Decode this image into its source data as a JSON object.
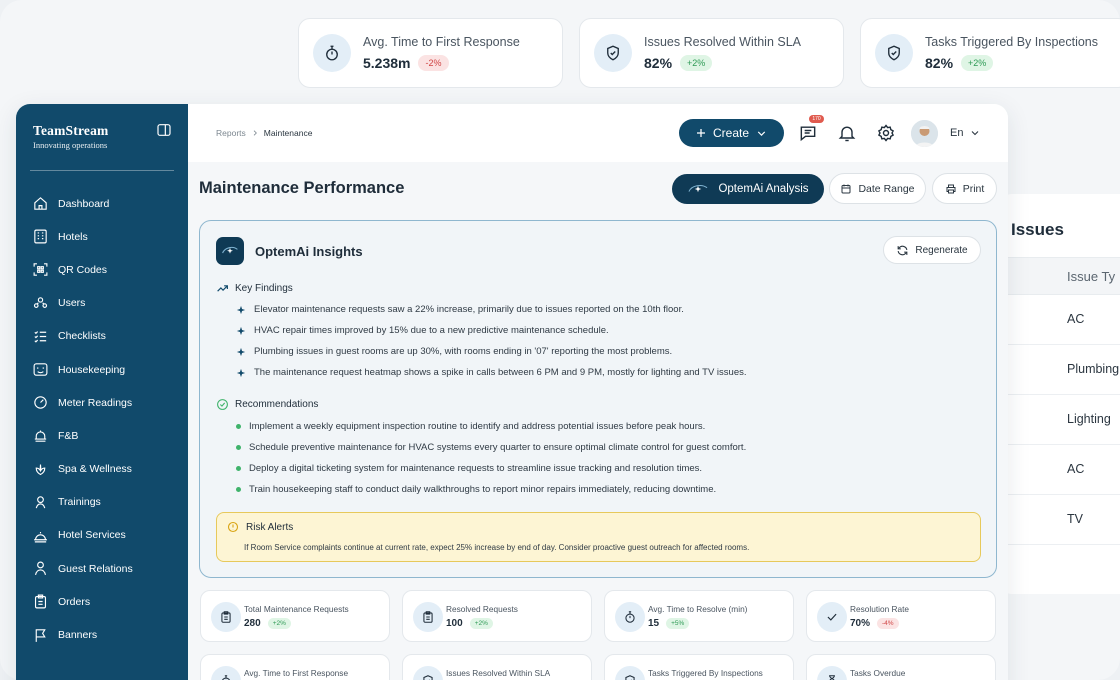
{
  "bg_stats": [
    {
      "label": "Avg. Time to First Response",
      "value": "5.238m",
      "delta": "-2%",
      "trend": "down",
      "icon": "stopwatch-icon"
    },
    {
      "label": "Issues Resolved Within SLA",
      "value": "82%",
      "delta": "+2%",
      "trend": "up",
      "icon": "shield-check-icon"
    },
    {
      "label": "Tasks Triggered By Inspections",
      "value": "82%",
      "delta": "+2%",
      "trend": "up",
      "icon": "shield-check-icon"
    }
  ],
  "bg_issues": {
    "title": "Issues",
    "column": "Issue Ty",
    "rows": [
      "AC",
      "Plumbing",
      "Lighting",
      "AC",
      "TV"
    ]
  },
  "brand": {
    "name": "TeamStream",
    "tagline": "Innovating operations"
  },
  "sidebar": {
    "items": [
      {
        "label": "Dashboard",
        "icon": "home-icon"
      },
      {
        "label": "Hotels",
        "icon": "building-icon"
      },
      {
        "label": "QR Codes",
        "icon": "qr-code-icon"
      },
      {
        "label": "Users",
        "icon": "users-icon"
      },
      {
        "label": "Checklists",
        "icon": "checklist-icon"
      },
      {
        "label": "Housekeeping",
        "icon": "housekeeping-icon"
      },
      {
        "label": "Meter Readings",
        "icon": "gauge-icon"
      },
      {
        "label": "F&B",
        "icon": "food-icon"
      },
      {
        "label": "Spa & Wellness",
        "icon": "lotus-icon"
      },
      {
        "label": "Trainings",
        "icon": "trainings-icon"
      },
      {
        "label": "Hotel Services",
        "icon": "service-bell-icon"
      },
      {
        "label": "Guest Relations",
        "icon": "guest-icon"
      },
      {
        "label": "Orders",
        "icon": "clipboard-icon"
      },
      {
        "label": "Banners",
        "icon": "flag-icon"
      }
    ]
  },
  "breadcrumb": {
    "root": "Reports",
    "current": "Maintenance"
  },
  "topbar": {
    "create_label": "Create",
    "notification_count": "170",
    "language": "En"
  },
  "page": {
    "title": "Maintenance Performance",
    "ai_button": "OptemAi Analysis",
    "date_range": "Date Range",
    "print": "Print"
  },
  "insights": {
    "title": "OptemAi Insights",
    "regenerate": "Regenerate",
    "key_findings_title": "Key Findings",
    "key_findings": [
      "Elevator maintenance requests saw a 22% increase, primarily due to issues reported on the 10th floor.",
      "HVAC repair times improved by 15% due to a new predictive maintenance schedule.",
      "Plumbing issues in guest rooms are up 30%, with rooms ending in '07' reporting the most problems.",
      "The maintenance request heatmap shows a spike in calls between 6 PM and 9 PM, mostly for lighting and TV issues."
    ],
    "recommendations_title": "Recommendations",
    "recommendations": [
      "Implement a weekly equipment inspection routine to identify and address potential issues before peak hours.",
      "Schedule preventive maintenance for HVAC systems every quarter to ensure optimal climate control for guest comfort.",
      "Deploy a digital ticketing system for maintenance requests to streamline issue tracking and resolution times.",
      "Train housekeeping staff to conduct daily walkthroughs to report minor repairs immediately, reducing downtime."
    ],
    "risk_title": "Risk Alerts",
    "risk_text": "If Room Service complaints continue at current rate, expect 25% increase by end of day. Consider proactive guest outreach for affected rooms."
  },
  "kpis": [
    {
      "label": "Total Maintenance Requests",
      "value": "280",
      "delta": "+2%",
      "trend": "up",
      "icon": "clipboard-icon"
    },
    {
      "label": "Resolved Requests",
      "value": "100",
      "delta": "+2%",
      "trend": "up",
      "icon": "clipboard-icon"
    },
    {
      "label": "Avg. Time to Resolve (min)",
      "value": "15",
      "delta": "+5%",
      "trend": "up",
      "icon": "stopwatch-icon"
    },
    {
      "label": "Resolution Rate",
      "value": "70%",
      "delta": "-4%",
      "trend": "down",
      "icon": "check-icon"
    },
    {
      "label": "Avg. Time to First Response",
      "icon": "stopwatch-icon"
    },
    {
      "label": "Issues Resolved Within SLA",
      "icon": "shield-check-icon"
    },
    {
      "label": "Tasks Triggered By Inspections",
      "icon": "shield-check-icon"
    },
    {
      "label": "Tasks Overdue",
      "icon": "hourglass-icon"
    }
  ],
  "colors": {
    "brand": "#114a6b",
    "accent_dark": "#0f3a55",
    "positive": "#2e9a55",
    "negative": "#d04545",
    "risk_bg": "#fdf5d4"
  }
}
